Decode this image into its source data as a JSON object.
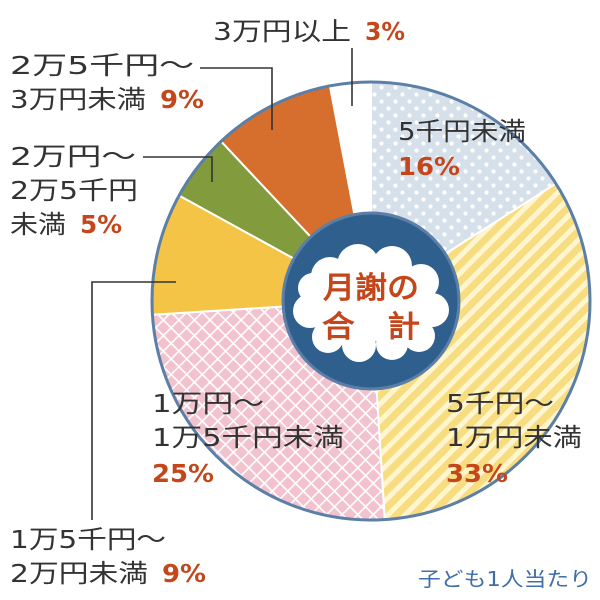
{
  "chart_data": {
    "type": "pie",
    "center_label": [
      "月謝の",
      "合　計"
    ],
    "note": "子ども1人当たり",
    "slices": [
      {
        "label_lines": [
          "5千円未満"
        ],
        "value": 16,
        "value_label": "16%",
        "color": "#d6e0ea",
        "pattern": "dots"
      },
      {
        "label_lines": [
          "5千円～",
          "1万円未満"
        ],
        "value": 33,
        "value_label": "33%",
        "color": "#f8dc80",
        "pattern": "stripes"
      },
      {
        "label_lines": [
          "1万円～",
          "1万5千円未満"
        ],
        "value": 25,
        "value_label": "25%",
        "color": "#f2c3cf",
        "pattern": "crosshatch"
      },
      {
        "label_lines": [
          "1万5千円～",
          "2万円未満"
        ],
        "value": 9,
        "value_label": "9%",
        "color": "#f3c445",
        "pattern": "solid"
      },
      {
        "label_lines": [
          "2万円～",
          "2万5千円",
          "未満"
        ],
        "value": 5,
        "value_label": "5%",
        "color": "#829b3c",
        "pattern": "solid"
      },
      {
        "label_lines": [
          "2万5千円～",
          "3万円未満"
        ],
        "value": 9,
        "value_label": "9%",
        "color": "#d66f2e",
        "pattern": "solid"
      },
      {
        "label_lines": [
          "3万円以上"
        ],
        "value": 3,
        "value_label": "3%",
        "color": "#ffffff",
        "pattern": "solid"
      }
    ],
    "colors": {
      "label_text": "#333333",
      "value_text": "#c4471c",
      "note_text": "#3f6fa6",
      "outline": "#5b7fa6",
      "center_fill": "#2f5f8d",
      "center_text": "#c4471c",
      "separator": "#ffffff"
    }
  }
}
